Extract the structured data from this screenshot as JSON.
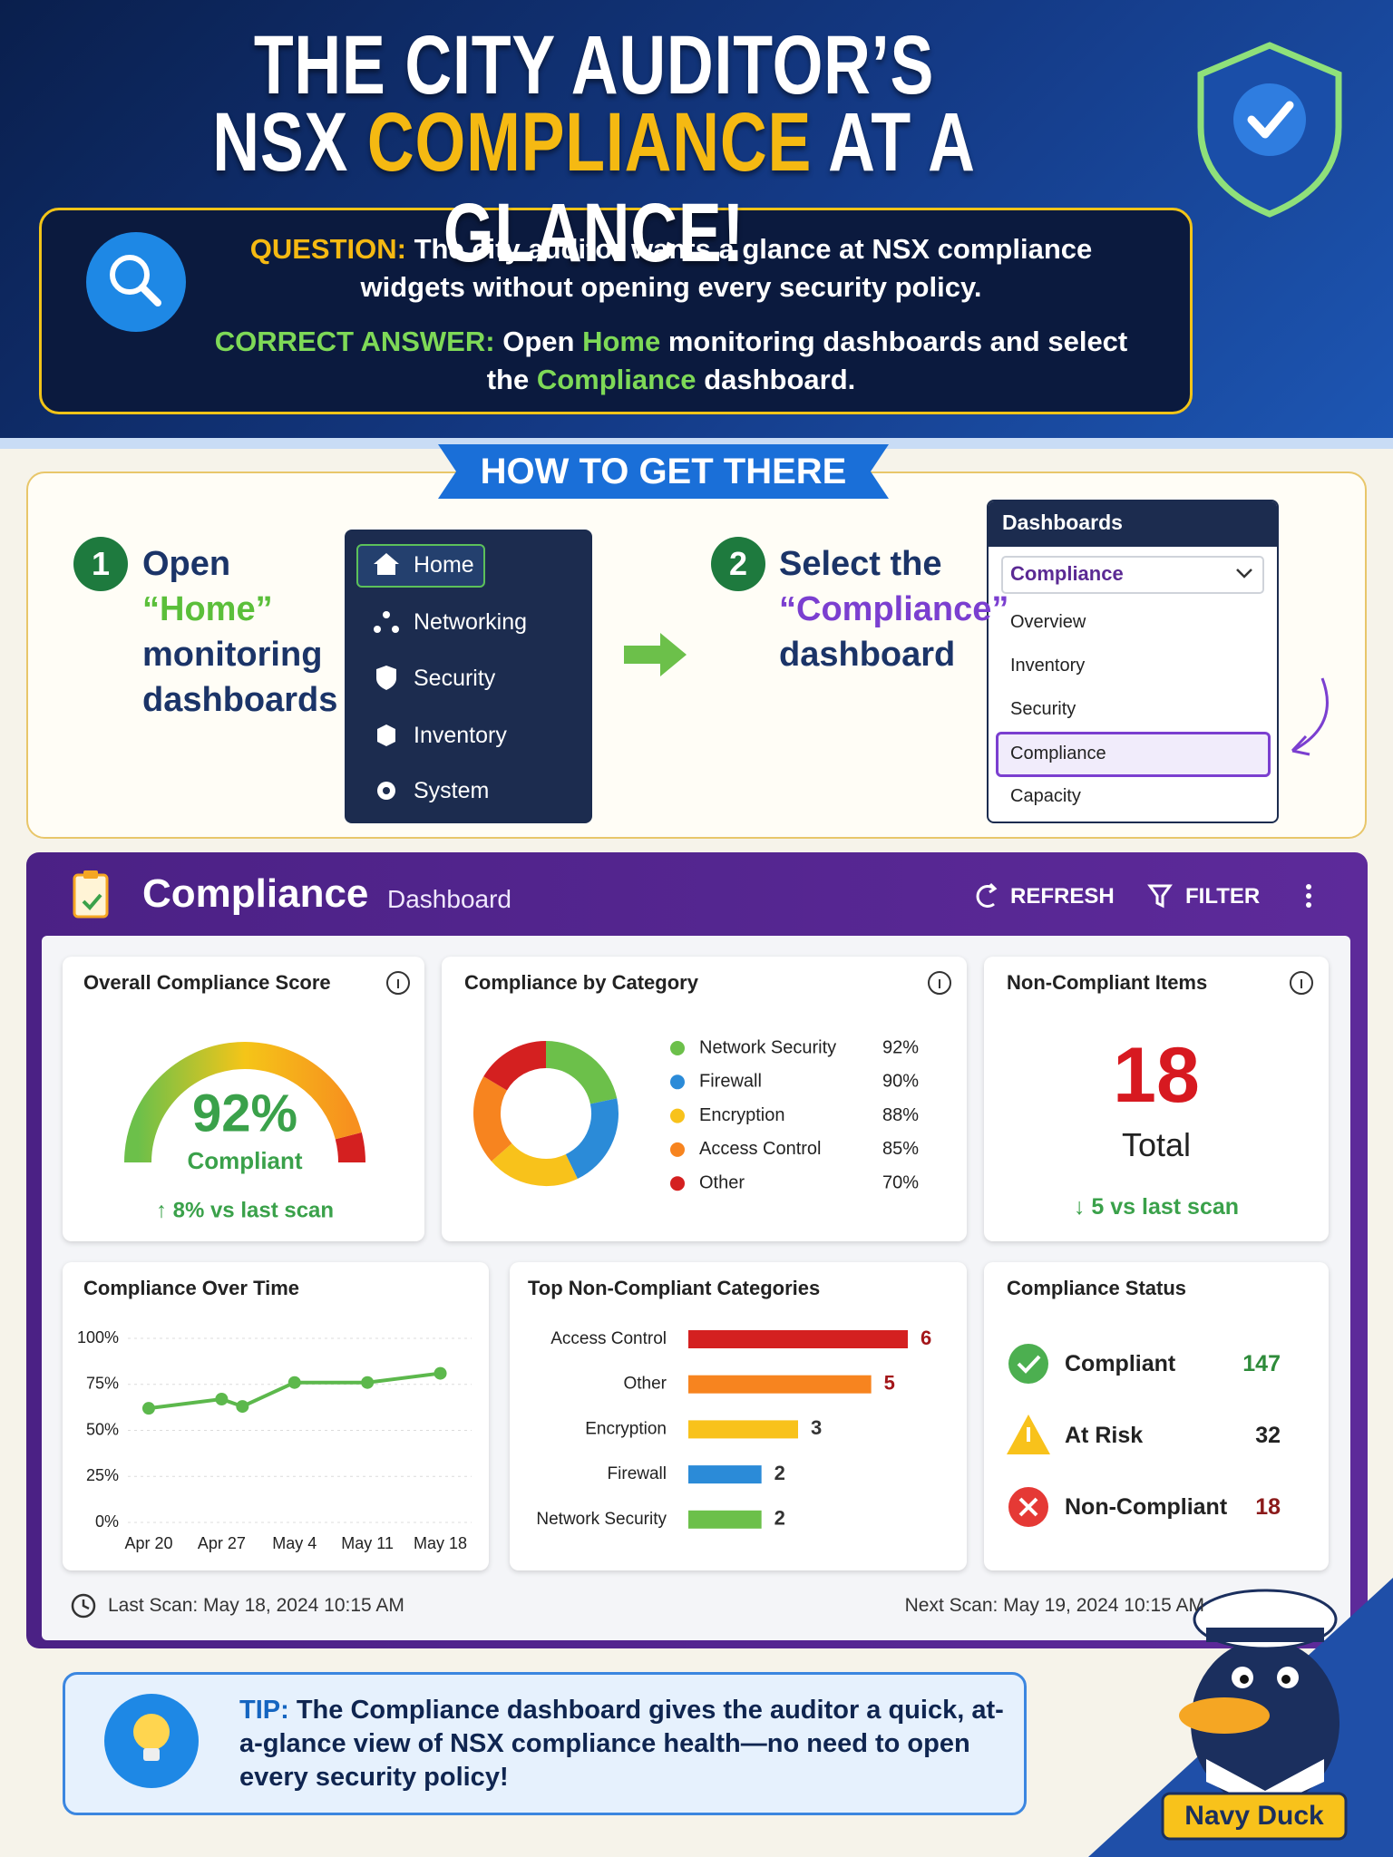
{
  "header": {
    "title_line1": "THE CITY AUDITOR’S",
    "title_line2": [
      "NSX",
      "COMPLIANCE",
      "AT A GLANCE!"
    ]
  },
  "question": {
    "label": "QUESTION:",
    "text": "The city auditor wants a glance at NSX compliance widgets without opening every security policy."
  },
  "answer": {
    "label": "CORRECT ANSWER:",
    "parts": [
      "Open",
      "Home",
      "monitoring dashboards and select the",
      "Compliance",
      "dashboard."
    ]
  },
  "how_to": {
    "title": "HOW TO GET THERE",
    "steps": [
      {
        "number": 1,
        "parts": [
          "Open",
          "“Home”",
          "monitoring dashboards"
        ]
      },
      {
        "number": 2,
        "parts": [
          "Select the",
          "“Compliance”",
          "dashboard"
        ]
      }
    ],
    "nav_menu": [
      "Home",
      "Networking",
      "Security",
      "Inventory",
      "System"
    ],
    "dropdown": {
      "title": "Dashboards",
      "selected": "Compliance",
      "options": [
        "Overview",
        "Inventory",
        "Security",
        "Compliance",
        "Capacity"
      ]
    }
  },
  "dashboard": {
    "title": "Compliance",
    "subtitle": "Dashboard",
    "actions": [
      "REFRESH",
      "FILTER"
    ],
    "non_compliant_items": {
      "title": "Non-Compliant Items",
      "value": 18,
      "label": "Total",
      "change": "↓ 5 vs last scan"
    },
    "status": {
      "title": "Compliance Status",
      "rows": [
        {
          "label": "Compliant",
          "value": 147
        },
        {
          "label": "At Risk",
          "value": 32
        },
        {
          "label": "Non-Compliant",
          "value": 18
        }
      ]
    },
    "last_scan": "Last Scan: May 18, 2024 10:15 AM",
    "next_scan": "Next Scan: May 19, 2024 10:15 AM"
  },
  "chart_data": [
    {
      "type": "gauge",
      "title": "Overall Compliance Score",
      "value": 92,
      "value_label": "92%",
      "label": "Compliant",
      "change": "↑ 8% vs last scan",
      "ylim": [
        0,
        100
      ]
    },
    {
      "type": "donut",
      "title": "Compliance by Category",
      "categories": [
        "Network Security",
        "Firewall",
        "Encryption",
        "Access Control",
        "Other"
      ],
      "values": [
        92,
        90,
        88,
        85,
        70
      ],
      "value_labels": [
        "92%",
        "90%",
        "88%",
        "85%",
        "70%"
      ],
      "colors": [
        "#6cc04a",
        "#2b8bd8",
        "#f8c21b",
        "#f7841f",
        "#d42020"
      ]
    },
    {
      "type": "line",
      "title": "Compliance Over Time",
      "x": [
        0,
        7,
        9,
        14,
        21,
        28
      ],
      "values": [
        62,
        67,
        63,
        76,
        76,
        81
      ],
      "color": "#5cb84c",
      "xlim": [
        -2,
        31
      ],
      "xticks": [
        {
          "value": 0,
          "label": "Apr 20"
        },
        {
          "value": 7,
          "label": "Apr 27"
        },
        {
          "value": 14,
          "label": "May 4"
        },
        {
          "value": 21,
          "label": "May 11"
        },
        {
          "value": 28,
          "label": "May 18"
        }
      ],
      "ylim": [
        0,
        100
      ],
      "yticks": [
        {
          "value": 0,
          "label": "0%"
        },
        {
          "value": 25,
          "label": "25%"
        },
        {
          "value": 50,
          "label": "50%"
        },
        {
          "value": 75,
          "label": "75%"
        },
        {
          "value": 100,
          "label": "100%"
        }
      ],
      "grid": true
    },
    {
      "type": "hbar",
      "title": "Top Non-Compliant Categories",
      "categories": [
        "Access Control",
        "Other",
        "Encryption",
        "Firewall",
        "Network Security"
      ],
      "values": [
        6,
        5,
        3,
        2,
        2
      ],
      "xlim": [
        0,
        6
      ],
      "colors": [
        "#d42020",
        "#f7841f",
        "#f8c21b",
        "#2b8bd8",
        "#6cc04a"
      ]
    }
  ],
  "tip": {
    "label": "TIP:",
    "text": "The Compliance dashboard gives the auditor a quick, at-a-glance view of NSX compliance health—no need to open every security policy!"
  },
  "mascot": "Navy Duck"
}
